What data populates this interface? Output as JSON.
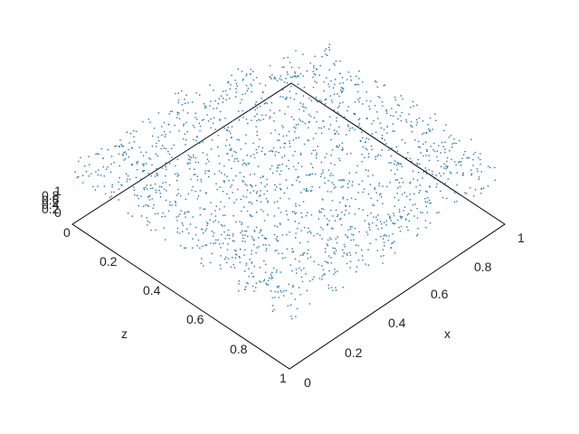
{
  "chart_data": {
    "type": "scatter",
    "projection": "3d",
    "title": "",
    "xlabel": "x",
    "ylabel": "",
    "zlabel": "z",
    "x_ticks": [
      "0",
      "0.2",
      "0.4",
      "0.6",
      "0.8",
      "1"
    ],
    "z_ticks": [
      "0",
      "0.2",
      "0.4",
      "0.6",
      "0.8",
      "1"
    ],
    "y_ticks": [
      "0",
      "0.2",
      "0.4",
      "0.6",
      "0.8",
      "1"
    ],
    "xlim": [
      0,
      1
    ],
    "ylim": [
      0,
      1
    ],
    "zlim": [
      0,
      1
    ],
    "grid": false,
    "legend": "none",
    "point_color": "#1f77b4",
    "series": [
      {
        "pattern": "lattice planes",
        "plane_count": 17,
        "points_per_plane": 150
      }
    ]
  }
}
